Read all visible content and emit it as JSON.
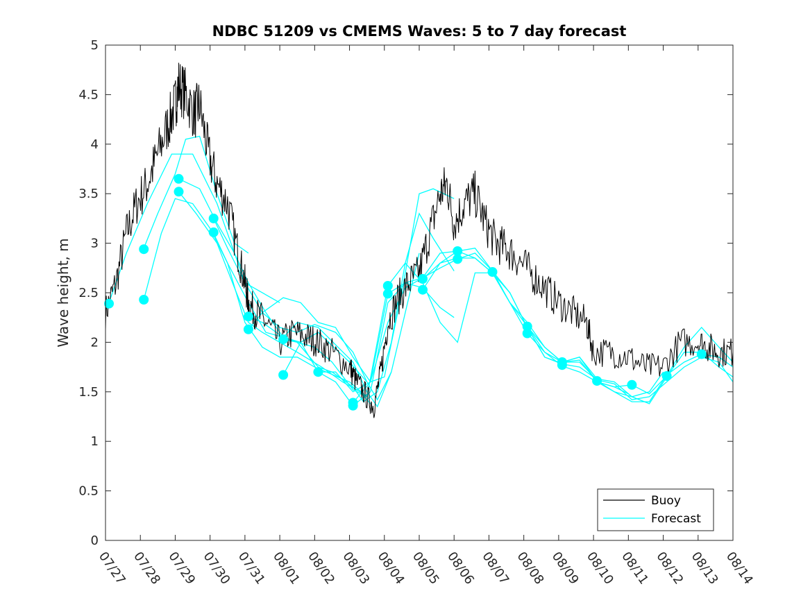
{
  "chart_data": {
    "type": "line",
    "title": "NDBC 51209 vs CMEMS Waves: 5 to 7 day forecast",
    "xlabel": "",
    "ylabel": "Wave height, m",
    "x_ticks": [
      "07/27",
      "07/28",
      "07/29",
      "07/30",
      "07/31",
      "08/01",
      "08/02",
      "08/03",
      "08/04",
      "08/05",
      "08/06",
      "08/07",
      "08/08",
      "08/09",
      "08/10",
      "08/11",
      "08/12",
      "08/13",
      "08/14"
    ],
    "xlim_days": [
      0,
      18
    ],
    "ylim": [
      0,
      5
    ],
    "y_ticks": [
      "0",
      "0.5",
      "1",
      "1.5",
      "2",
      "2.5",
      "3",
      "3.5",
      "4",
      "4.5",
      "5"
    ],
    "grid": false,
    "legend": {
      "placement": "bottom-right",
      "entries": [
        "Buoy",
        "Forecast"
      ]
    },
    "colors": {
      "buoy": "#000000",
      "forecast": "#00ffff"
    },
    "buoy": {
      "name": "Buoy",
      "x": [
        0,
        0.3,
        0.6,
        0.9,
        1.2,
        1.5,
        1.8,
        2.0,
        2.1,
        2.3,
        2.55,
        2.7,
        2.95,
        3.2,
        3.5,
        3.8,
        4.0,
        4.1,
        4.3,
        4.6,
        5.0,
        5.4,
        5.8,
        6.1,
        6.5,
        7.0,
        7.2,
        7.5,
        7.7,
        7.9,
        8.1,
        8.4,
        8.7,
        9.0,
        9.3,
        9.6,
        9.8,
        10.0,
        10.3,
        10.6,
        10.9,
        11.2,
        11.5,
        11.8,
        12.2,
        12.6,
        13.0,
        13.4,
        13.8,
        14.0,
        14.5,
        15.0,
        15.5,
        16.0,
        16.5,
        17.0,
        17.3,
        17.6,
        18.0
      ],
      "y": [
        2.3,
        2.6,
        3.1,
        3.4,
        3.6,
        3.9,
        4.2,
        4.4,
        4.6,
        4.5,
        4.3,
        4.4,
        3.9,
        3.6,
        3.4,
        2.9,
        2.6,
        2.4,
        2.3,
        2.2,
        2.0,
        2.1,
        2.05,
        2.0,
        1.9,
        1.75,
        1.6,
        1.45,
        1.35,
        1.7,
        2.2,
        2.45,
        2.6,
        2.7,
        3.1,
        3.5,
        3.6,
        3.2,
        3.4,
        3.5,
        3.2,
        3.0,
        2.95,
        2.85,
        2.7,
        2.55,
        2.4,
        2.3,
        2.2,
        1.9,
        1.9,
        1.85,
        1.75,
        1.75,
        2.0,
        2.0,
        1.95,
        1.9,
        1.9
      ]
    },
    "forecast_series": [
      {
        "x": [
          0.1,
          0.6,
          1.2,
          1.9,
          2.5,
          3.2,
          4.0,
          5.0
        ],
        "y": [
          2.4,
          2.9,
          3.4,
          3.9,
          3.9,
          3.4,
          2.6,
          2.4
        ]
      },
      {
        "x": [
          1.1,
          1.5,
          2.0,
          2.3,
          2.7,
          3.2,
          3.7,
          4.1
        ],
        "y": [
          2.95,
          3.3,
          3.7,
          4.05,
          4.08,
          3.5,
          3.0,
          2.9
        ]
      },
      {
        "x": [
          1.1,
          1.6,
          2.0,
          2.5,
          3.0,
          3.5,
          4.0,
          4.5,
          5.0,
          5.5,
          6.0,
          7.0,
          7.5
        ],
        "y": [
          2.43,
          3.1,
          3.45,
          3.4,
          3.15,
          2.8,
          2.2,
          1.95,
          1.85,
          1.85,
          1.75,
          1.6,
          1.45
        ]
      },
      {
        "x": [
          2.1,
          2.7,
          3.2,
          3.7,
          4.1,
          4.6,
          5.1,
          5.6,
          6.1,
          7.0,
          7.5
        ],
        "y": [
          3.65,
          3.55,
          3.2,
          2.9,
          2.6,
          2.3,
          2.05,
          2.0,
          2.1,
          1.8,
          1.6
        ]
      },
      {
        "x": [
          2.1,
          2.6,
          3.2,
          3.7,
          4.1,
          4.5,
          5.0,
          5.5,
          6.2,
          6.8,
          7.3,
          7.6
        ],
        "y": [
          3.52,
          3.3,
          3.0,
          2.55,
          2.2,
          2.1,
          2.0,
          1.9,
          1.75,
          1.6,
          1.5,
          1.38
        ]
      },
      {
        "x": [
          3.1,
          3.5,
          4.0,
          4.5,
          5.0,
          5.5,
          6.0,
          6.6,
          7.1,
          7.5,
          7.8,
          8.2
        ],
        "y": [
          3.25,
          2.95,
          2.6,
          2.3,
          2.15,
          2.1,
          2.18,
          2.1,
          1.9,
          1.6,
          1.42,
          1.7
        ]
      },
      {
        "x": [
          3.1,
          3.5,
          4.1,
          4.6,
          5.1,
          5.5,
          6.1,
          7.1,
          7.5,
          7.8,
          8.2,
          8.6,
          9.0
        ],
        "y": [
          3.1,
          2.8,
          2.4,
          2.1,
          2.05,
          2.2,
          2.15,
          1.8,
          1.5,
          1.35,
          1.7,
          2.3,
          2.9
        ]
      },
      {
        "x": [
          4.1,
          4.5,
          5.1,
          5.5,
          6.1,
          6.5,
          7.1,
          7.4,
          7.8,
          8.2,
          8.6,
          9.0,
          9.4,
          10.0
        ],
        "y": [
          2.26,
          2.2,
          2.05,
          2.0,
          1.75,
          1.7,
          1.55,
          1.4,
          1.5,
          2.0,
          2.8,
          3.3,
          3.05,
          2.72
        ]
      },
      {
        "x": [
          4.1,
          4.5,
          5.1,
          5.6,
          6.1,
          6.6,
          7.1,
          7.6,
          8.0,
          8.5,
          9.0,
          9.4,
          10.0
        ],
        "y": [
          2.13,
          2.3,
          2.45,
          2.4,
          2.2,
          2.15,
          1.85,
          1.6,
          1.65,
          2.5,
          3.5,
          3.55,
          3.45
        ]
      },
      {
        "x": [
          5.1,
          5.5,
          6.0,
          6.5,
          7.1,
          7.5,
          8.1,
          8.6,
          9.1,
          9.6,
          10.1,
          10.6,
          11.0
        ],
        "y": [
          2.03,
          2.0,
          1.95,
          1.8,
          1.52,
          1.45,
          2.57,
          2.8,
          2.6,
          2.2,
          2.0,
          2.7,
          2.7
        ]
      },
      {
        "x": [
          5.1,
          5.6,
          6.1,
          6.6,
          7.1,
          7.6,
          8.1,
          8.6,
          9.1,
          9.6,
          10.0
        ],
        "y": [
          1.67,
          2.0,
          1.7,
          1.7,
          1.5,
          1.6,
          2.49,
          2.6,
          2.55,
          2.35,
          2.25
        ]
      },
      {
        "x": [
          6.1,
          6.6,
          7.1,
          7.6,
          8.1,
          8.6,
          9.1,
          9.6,
          10.1,
          10.6,
          11.1,
          11.6,
          12.1,
          12.6,
          13.0
        ],
        "y": [
          1.7,
          1.6,
          1.36,
          1.5,
          2.4,
          2.6,
          2.65,
          2.9,
          2.92,
          2.85,
          2.7,
          2.5,
          2.15,
          1.85,
          1.8
        ]
      },
      {
        "x": [
          7.1,
          7.6,
          8.1,
          8.6,
          9.1,
          9.6,
          10.1,
          10.6,
          11.1,
          11.6,
          12.1,
          12.6,
          13.1,
          13.6,
          14.0
        ],
        "y": [
          1.39,
          1.6,
          2.2,
          2.55,
          2.65,
          2.75,
          2.84,
          2.9,
          2.72,
          2.5,
          2.15,
          1.85,
          1.78,
          1.75,
          1.65
        ]
      },
      {
        "x": [
          9.1,
          9.6,
          10.1,
          10.6,
          11.1,
          11.6,
          12.1,
          12.6,
          13.1,
          13.6,
          14.1,
          14.6,
          15.0
        ],
        "y": [
          2.64,
          2.8,
          2.92,
          2.95,
          2.72,
          2.4,
          2.16,
          1.9,
          1.8,
          1.82,
          1.6,
          1.55,
          1.48
        ]
      },
      {
        "x": [
          9.1,
          9.6,
          10.1,
          10.6,
          11.1,
          11.6,
          12.1,
          12.6,
          13.1,
          13.6,
          14.1,
          14.6,
          15.1,
          15.6,
          16.0
        ],
        "y": [
          2.53,
          2.8,
          2.85,
          2.85,
          2.7,
          2.4,
          2.09,
          1.9,
          1.76,
          1.7,
          1.6,
          1.5,
          1.45,
          1.5,
          1.7
        ]
      },
      {
        "x": [
          11.1,
          11.6,
          12.1,
          12.6,
          13.1,
          13.6,
          14.1,
          14.6,
          15.1,
          15.6,
          16.1,
          16.6,
          17.1,
          17.6,
          18.0
        ],
        "y": [
          2.7,
          2.4,
          2.2,
          1.95,
          1.8,
          1.85,
          1.63,
          1.6,
          1.45,
          1.38,
          1.65,
          1.9,
          1.9,
          1.75,
          1.65
        ]
      },
      {
        "x": [
          12.1,
          12.6,
          13.1,
          13.6,
          14.1,
          14.6,
          15.1,
          15.6,
          16.1,
          16.6,
          17.1,
          17.6,
          18.0
        ],
        "y": [
          2.16,
          1.95,
          1.8,
          1.8,
          1.62,
          1.58,
          1.42,
          1.45,
          1.6,
          1.75,
          1.85,
          1.8,
          1.6
        ]
      },
      {
        "x": [
          13.1,
          13.6,
          14.1,
          14.6,
          15.1,
          15.6,
          16.1,
          16.6,
          17.1,
          17.6,
          18.0
        ],
        "y": [
          1.8,
          1.85,
          1.6,
          1.55,
          1.57,
          1.48,
          1.66,
          1.95,
          2.15,
          1.95,
          1.8
        ]
      },
      {
        "x": [
          14.1,
          14.6,
          15.1,
          15.6,
          16.1,
          16.6,
          17.1,
          17.6,
          18.0
        ],
        "y": [
          1.61,
          1.5,
          1.4,
          1.4,
          1.67,
          1.8,
          1.88,
          1.85,
          1.75
        ]
      }
    ],
    "forecast_markers": {
      "x": [
        0.1,
        1.1,
        1.1,
        2.1,
        2.1,
        3.1,
        3.1,
        4.1,
        4.1,
        5.1,
        5.1,
        6.1,
        7.1,
        7.1,
        8.1,
        8.1,
        9.1,
        9.1,
        10.1,
        10.1,
        11.1,
        12.1,
        12.1,
        13.1,
        13.1,
        14.1,
        15.1,
        16.1,
        17.1
      ],
      "y": [
        2.39,
        2.94,
        2.43,
        3.65,
        3.52,
        3.25,
        3.11,
        2.26,
        2.13,
        2.03,
        1.67,
        1.7,
        1.39,
        1.36,
        2.57,
        2.49,
        2.64,
        2.53,
        2.92,
        2.84,
        2.71,
        2.16,
        2.09,
        1.8,
        1.77,
        1.61,
        1.57,
        1.66,
        1.88
      ]
    }
  }
}
